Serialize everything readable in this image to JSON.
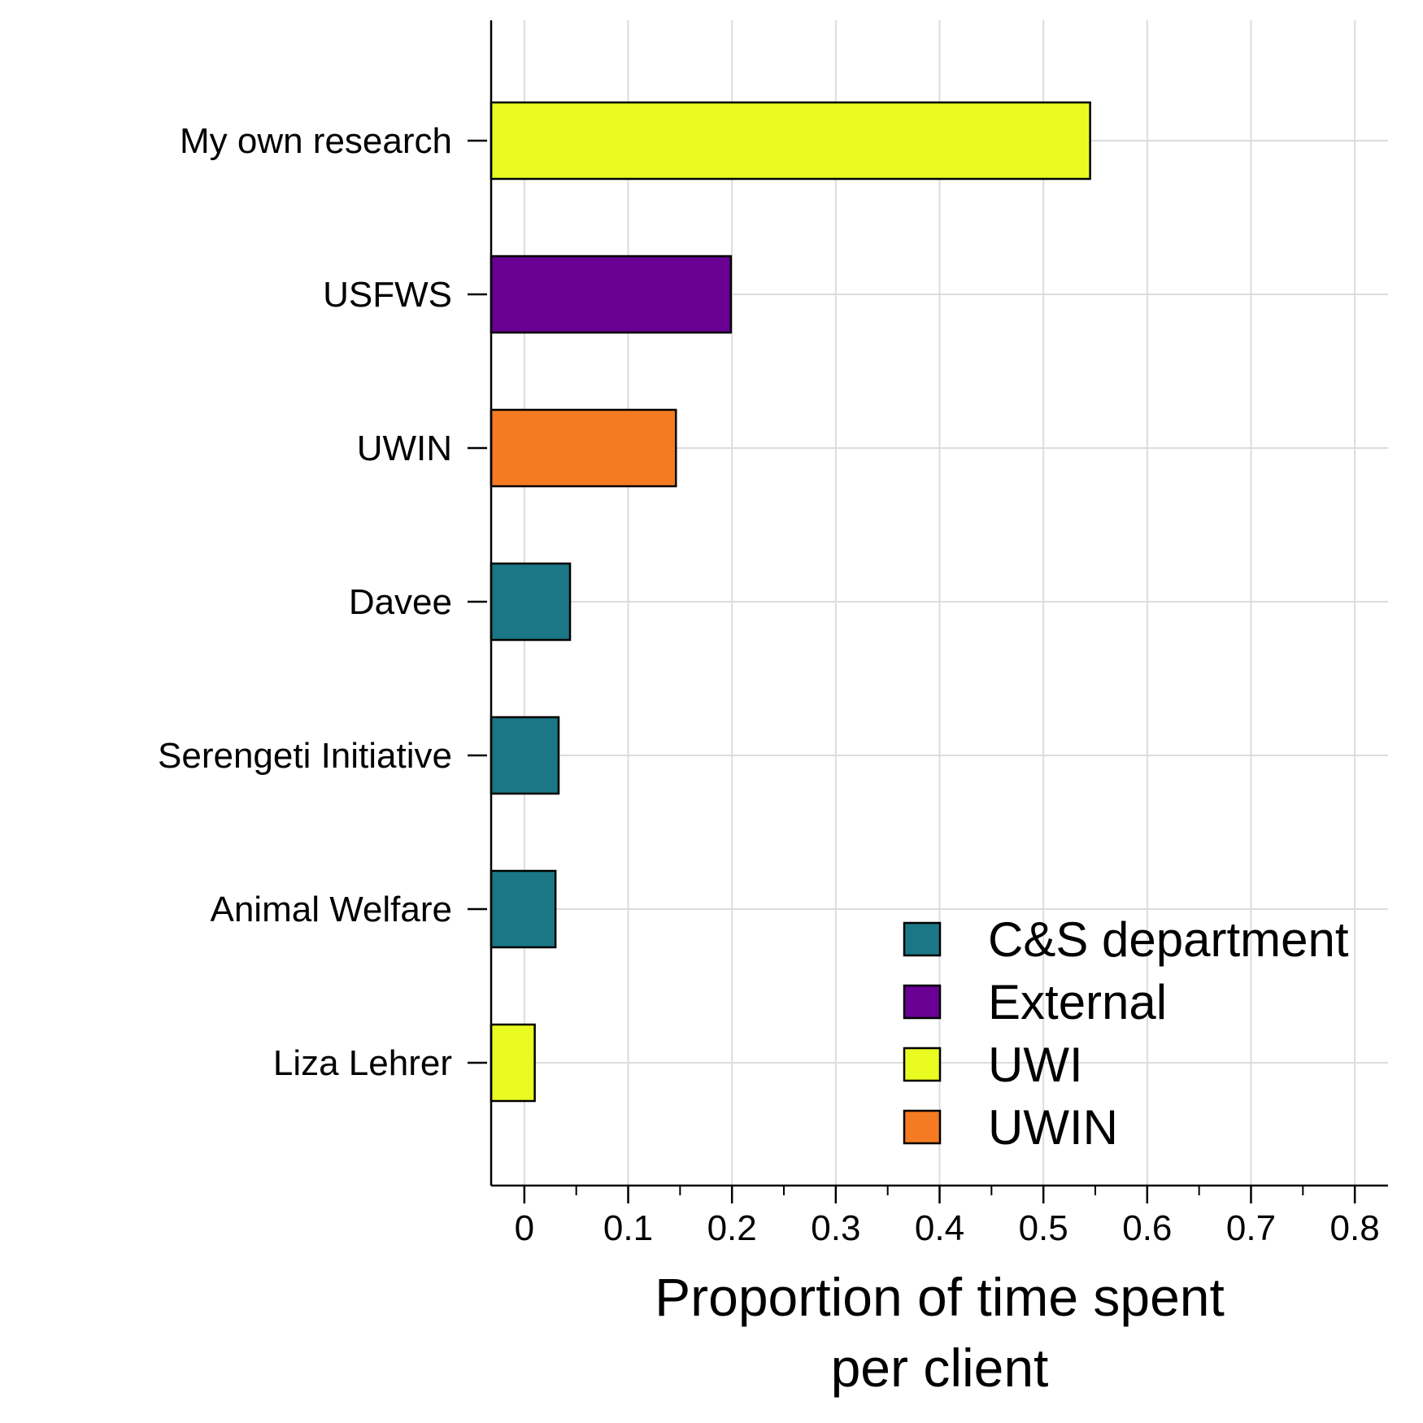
{
  "chart_data": {
    "type": "bar",
    "orientation": "horizontal",
    "categories": [
      "My own research",
      "USFWS",
      "UWIN",
      "Davee",
      "Serengeti Initiative",
      "Animal Welfare",
      "Liza Lehrer"
    ],
    "values": [
      0.545,
      0.199,
      0.146,
      0.044,
      0.033,
      0.03,
      0.01
    ],
    "groups": [
      "UWI",
      "External",
      "UWIN",
      "C&S department",
      "C&S department",
      "C&S department",
      "UWI"
    ],
    "xlabel_lines": [
      "Proportion of time spent",
      "per client"
    ],
    "ylabel": "",
    "xlim": [
      -0.032,
      0.832
    ],
    "x_ticks": [
      0,
      0.1,
      0.2,
      0.3,
      0.4,
      0.5,
      0.6,
      0.7,
      0.8
    ],
    "x_tick_labels": [
      "0",
      "0.1",
      "0.2",
      "0.3",
      "0.4",
      "0.5",
      "0.6",
      "0.7",
      "0.8"
    ],
    "x_minor_ticks": [
      0.05,
      0.15,
      0.25,
      0.35,
      0.45,
      0.55,
      0.65,
      0.75
    ],
    "grid": true,
    "legend": {
      "position": "bottom-right",
      "entries": [
        {
          "label": "C&S department",
          "color": "#1b7785"
        },
        {
          "label": "External",
          "color": "#690093"
        },
        {
          "label": "UWI",
          "color": "#e9fb21"
        },
        {
          "label": "UWIN",
          "color": "#f47b22"
        }
      ]
    }
  }
}
